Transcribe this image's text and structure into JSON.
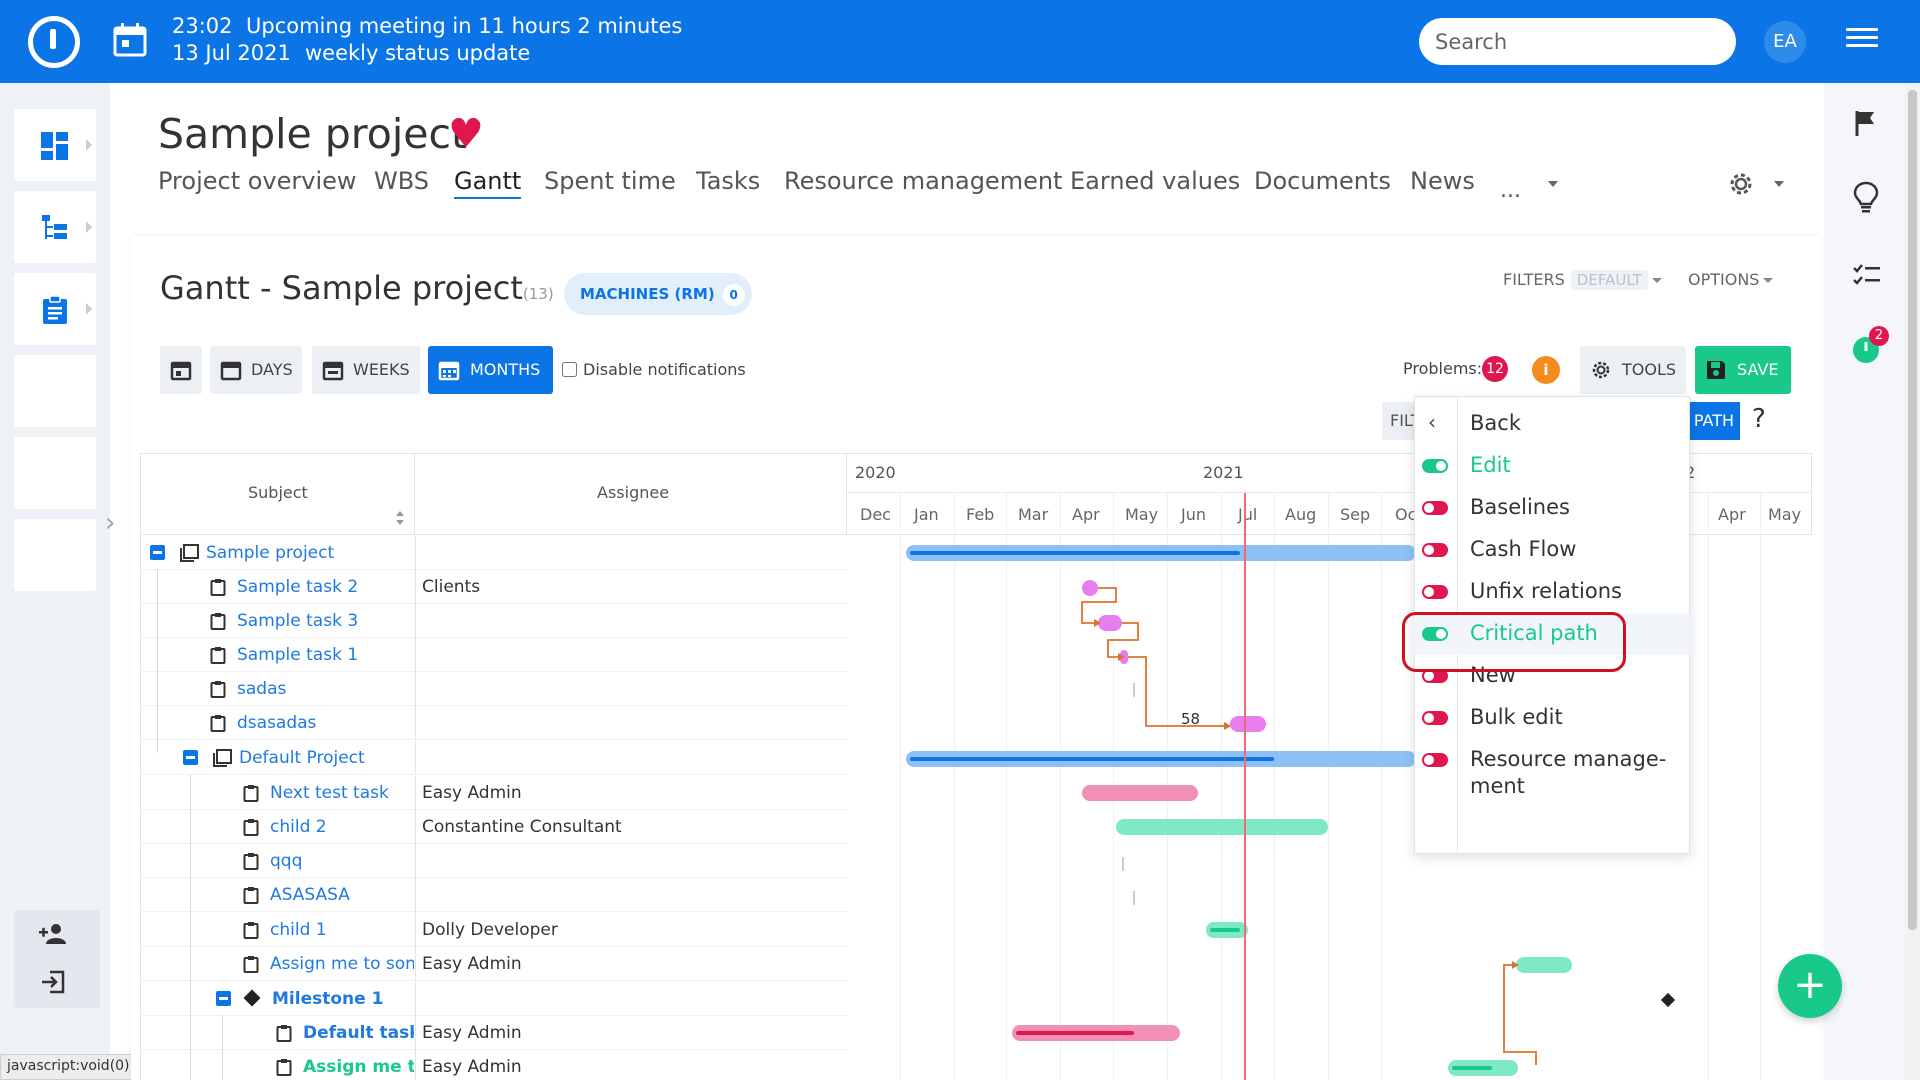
{
  "topbar": {
    "meeting_time": "23:02",
    "meeting_text": "Upcoming meeting in 11 hours 2 minutes",
    "meeting_date": "13 Jul 2021",
    "meeting_title": "weekly status update",
    "search_placeholder": "Search",
    "avatar_initials": "EA"
  },
  "project": {
    "title": "Sample project",
    "menu": [
      "Project overview",
      "WBS",
      "Gantt",
      "Spent time",
      "Tasks",
      "Resource management",
      "Earned values",
      "Documents",
      "News"
    ],
    "menu_active": "Gantt",
    "menu_more": "..."
  },
  "gantt": {
    "title": "Gantt - Sample project",
    "count": "(13)",
    "rm_pill_label": "MACHINES (RM)",
    "rm_pill_count": "0",
    "filters_label": "FILTERS",
    "filters_default": "DEFAULT",
    "options_label": "OPTIONS",
    "toolbar": {
      "days": "DAYS",
      "weeks": "WEEKS",
      "months": "MONTHS",
      "disable_notifications": "Disable notifications",
      "problems_label": "Problems:",
      "problems_count": "12",
      "info_label": "i",
      "tools": "TOOLS",
      "save": "SAVE",
      "filter_short": "FILT",
      "path_label": "PATH",
      "help": "?"
    },
    "columns": {
      "subject": "Subject",
      "assignee": "Assignee"
    },
    "years": [
      "2020",
      "2021",
      "2"
    ],
    "months": [
      "Dec",
      "Jan",
      "Feb",
      "Mar",
      "Apr",
      "May",
      "Jun",
      "Jul",
      "Aug",
      "Sep",
      "Oc",
      "Apr",
      "May"
    ],
    "bar_label": "58",
    "rows": [
      {
        "subject": "Sample project",
        "assignee": ""
      },
      {
        "subject": "Sample task 2",
        "assignee": "Clients"
      },
      {
        "subject": "Sample task 3",
        "assignee": ""
      },
      {
        "subject": "Sample task 1",
        "assignee": ""
      },
      {
        "subject": "sadas",
        "assignee": ""
      },
      {
        "subject": "dsasadas",
        "assignee": ""
      },
      {
        "subject": "Default Project",
        "assignee": ""
      },
      {
        "subject": "Next test task",
        "assignee": "Easy Admin"
      },
      {
        "subject": "child 2",
        "assignee": "Constantine Consultant"
      },
      {
        "subject": "qqq",
        "assignee": ""
      },
      {
        "subject": "ASASASA",
        "assignee": ""
      },
      {
        "subject": "child 1",
        "assignee": "Dolly Developer"
      },
      {
        "subject": "Assign me to son",
        "assignee": "Easy Admin"
      },
      {
        "subject": "Milestone 1",
        "assignee": ""
      },
      {
        "subject": "Default task",
        "assignee": "Easy Admin"
      },
      {
        "subject": "Assign me to",
        "assignee": "Easy Admin"
      }
    ]
  },
  "dropdown": {
    "items": [
      {
        "label": "Back",
        "state": "none"
      },
      {
        "label": "Edit",
        "state": "on"
      },
      {
        "label": "Baselines",
        "state": "off"
      },
      {
        "label": "Cash Flow",
        "state": "off"
      },
      {
        "label": "Unfix relations",
        "state": "off"
      },
      {
        "label": "Critical path",
        "state": "on"
      },
      {
        "label": "New",
        "state": "off"
      },
      {
        "label": "Bulk edit",
        "state": "off"
      },
      {
        "label": "Resource manage-",
        "label2": "ment",
        "state": "off"
      }
    ]
  },
  "rightbar": {
    "timer_badge": "2"
  },
  "statusbar": {
    "text": "javascript:void(0)"
  },
  "colors": {
    "brand": "#0b74e6",
    "green": "#18c98a",
    "red": "#e0164e",
    "today_line": "#ef6b73"
  }
}
